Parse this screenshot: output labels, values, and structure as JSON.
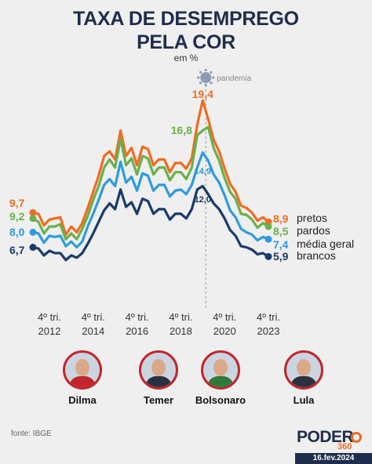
{
  "title_line1": "TAXA DE DESEMPREGO",
  "title_line2": "PELA COR",
  "subtitle": "em %",
  "chart_data": {
    "type": "line",
    "ylim": [
      4.5,
      20.5
    ],
    "xlim": [
      0,
      47
    ],
    "pandemic_index": 32,
    "pandemic_label": "pandemia",
    "x_ticks": [
      {
        "index": 0,
        "line1": "4º tri.",
        "line2": "2012"
      },
      {
        "index": 8,
        "line1": "4º tri.",
        "line2": "2014"
      },
      {
        "index": 16,
        "line1": "4º tri.",
        "line2": "2016"
      },
      {
        "index": 24,
        "line1": "4º tri.",
        "line2": "2018"
      },
      {
        "index": 32,
        "line1": "4º tri.",
        "line2": "2020"
      },
      {
        "index": 44,
        "line1": "4º tri.",
        "line2": "2023"
      }
    ],
    "series": [
      {
        "name": "pretos",
        "color": "#f26b21",
        "values": [
          9.7,
          9.6,
          8.6,
          9.1,
          9.2,
          9.3,
          7.8,
          8.5,
          8.0,
          8.8,
          10.1,
          11.5,
          12.9,
          14.6,
          15.0,
          14.3,
          16.8,
          14.6,
          15.3,
          13.8,
          15.4,
          15.2,
          13.8,
          14.3,
          14.3,
          13.2,
          14.0,
          14.0,
          13.5,
          14.4,
          17.3,
          19.4,
          17.8,
          16.0,
          15.0,
          13.5,
          12.2,
          11.5,
          10.3,
          10.1,
          9.7,
          9.0,
          9.3,
          8.9
        ],
        "labels": [
          {
            "index": 0,
            "text": "9,7"
          },
          {
            "index": 31,
            "text": "19,4"
          },
          {
            "index": 43,
            "text": "8,9"
          }
        ]
      },
      {
        "name": "pardos",
        "color": "#6ab04c",
        "values": [
          9.2,
          8.9,
          7.9,
          8.5,
          8.5,
          8.7,
          7.4,
          7.9,
          7.4,
          8.3,
          9.4,
          10.8,
          12.0,
          13.6,
          14.3,
          13.6,
          16.1,
          13.8,
          14.4,
          13.0,
          14.6,
          14.4,
          13.0,
          13.6,
          13.6,
          12.5,
          13.2,
          13.2,
          12.6,
          13.6,
          16.4,
          16.8,
          17.1,
          15.3,
          14.2,
          12.7,
          11.5,
          10.9,
          9.6,
          9.5,
          9.1,
          8.4,
          8.8,
          8.5
        ],
        "labels": [
          {
            "index": 0,
            "text": "9,2"
          },
          {
            "index": 31,
            "text": "16,8"
          },
          {
            "index": 43,
            "text": "8,5"
          }
        ]
      },
      {
        "name": "média geral",
        "color": "#2f9bde",
        "values": [
          8.0,
          7.9,
          7.1,
          7.7,
          7.6,
          7.7,
          6.8,
          7.2,
          6.7,
          7.2,
          8.5,
          9.6,
          10.8,
          12.1,
          12.6,
          12.0,
          14.1,
          12.3,
          12.8,
          11.6,
          13.1,
          12.9,
          11.6,
          12.1,
          12.1,
          11.1,
          11.6,
          11.7,
          11.3,
          12.1,
          13.6,
          14.9,
          14.2,
          13.0,
          12.3,
          11.2,
          9.9,
          9.3,
          8.3,
          8.0,
          7.8,
          7.3,
          7.6,
          7.4
        ],
        "labels": [
          {
            "index": 0,
            "text": "8,0"
          },
          {
            "index": 31,
            "text": "14,9"
          },
          {
            "index": 43,
            "text": "7,4"
          }
        ]
      },
      {
        "name": "brancos",
        "color": "#1b3a6b",
        "values": [
          6.7,
          6.6,
          6.0,
          6.4,
          6.2,
          6.2,
          5.6,
          6.0,
          5.8,
          6.2,
          7.0,
          7.9,
          8.9,
          9.9,
          10.5,
          10.0,
          11.7,
          10.2,
          10.6,
          9.6,
          10.9,
          10.7,
          9.6,
          10.0,
          10.0,
          9.1,
          9.6,
          9.6,
          9.2,
          10.0,
          11.7,
          12.0,
          11.3,
          10.5,
          10.0,
          9.2,
          8.2,
          7.7,
          6.8,
          6.7,
          6.5,
          6.1,
          6.2,
          5.9
        ],
        "labels": [
          {
            "index": 0,
            "text": "6,7"
          },
          {
            "index": 31,
            "text": "12,0"
          },
          {
            "index": 43,
            "text": "5,9"
          }
        ]
      }
    ]
  },
  "presidents": [
    {
      "name": "Dilma"
    },
    {
      "name": "Temer"
    },
    {
      "name": "Bolsonaro"
    },
    {
      "name": "Lula"
    }
  ],
  "source": "fonte: IBGE",
  "logo": {
    "main": "PODER",
    "sub": "360"
  },
  "date": "16.fev.2024",
  "colors": {
    "background": "#efefef",
    "title": "#1f2d4c",
    "accent": "#c0262c"
  }
}
